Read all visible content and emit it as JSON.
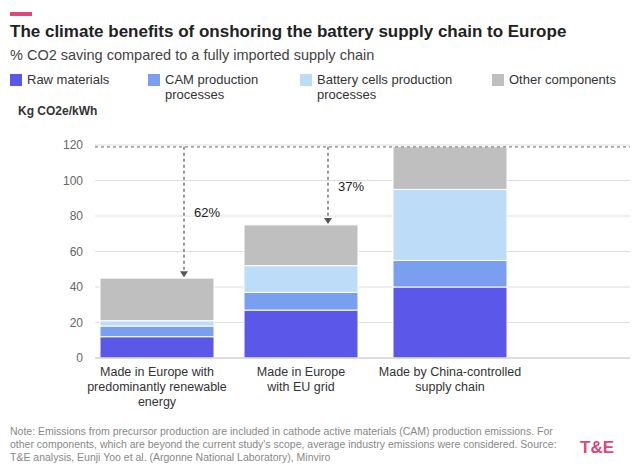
{
  "chart_data": {
    "type": "bar",
    "stacked": true,
    "title": "The climate benefits of onshoring the battery supply chain to Europe",
    "subtitle": "% CO2 saving compared to a fully imported supply chain",
    "y_label": "Kg CO2e/kWh",
    "categories": [
      "Made in Europe with predominantly renewable energy",
      "Made in Europe with EU grid",
      "Made by China-controlled supply chain"
    ],
    "series": [
      {
        "name": "Raw materials",
        "color": "#5b57e8",
        "values": [
          12,
          27,
          40
        ]
      },
      {
        "name": "CAM production processes",
        "color": "#7a9ff0",
        "values": [
          6,
          10,
          15
        ]
      },
      {
        "name": "Battery cells production processes",
        "color": "#bcdcf7",
        "values": [
          3,
          15,
          40
        ]
      },
      {
        "name": "Other components",
        "color": "#bfbfbf",
        "values": [
          24,
          23,
          24
        ]
      }
    ],
    "ylim": [
      0,
      120
    ],
    "yticks": [
      0,
      20,
      40,
      60,
      80,
      100,
      120
    ],
    "grid": true,
    "legend": "top-left",
    "annotations": [
      "62%",
      "37%",
      null
    ],
    "note": "Note: Emissions from precursor production are included in cathode active materials (CAM) production emissions. For other components, which are beyond the current study's scope, average industry emissions were considered. Source: T&E analysis, Eunji Yoo et al. (Argonne National Laboratory), Minviro",
    "source_logo": "T&E"
  }
}
